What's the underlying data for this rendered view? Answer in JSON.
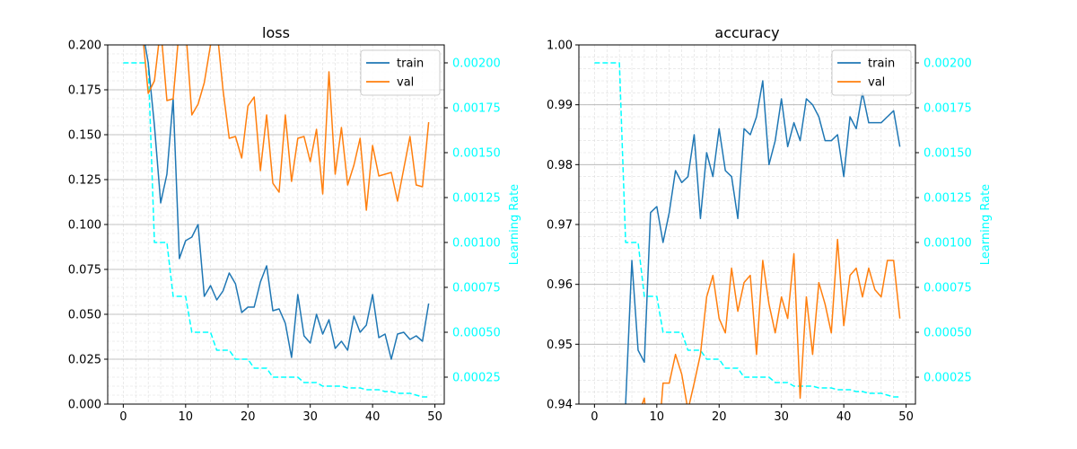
{
  "colors": {
    "train": "#1f77b4",
    "val": "#ff7f0e",
    "learning_rate": "#00ffff",
    "major_grid": "#b0b0b0",
    "minor_grid": "#dddddd"
  },
  "chart_data": [
    {
      "type": "line",
      "title": "loss",
      "xlabel": "",
      "ylabel": "",
      "y2label": "Learning Rate",
      "xlim": [
        -2.5,
        51.5
      ],
      "ylim": [
        0,
        0.2
      ],
      "y2lim": [
        0.0001,
        0.0021
      ],
      "grid": true,
      "legend_position": "top-right",
      "x_ticks": [
        0,
        10,
        20,
        30,
        40,
        50
      ],
      "x_tick_labels": [
        "0",
        "10",
        "20",
        "30",
        "40",
        "50"
      ],
      "y_ticks": [
        0,
        0.025,
        0.05,
        0.075,
        0.1,
        0.125,
        0.15,
        0.175,
        0.2
      ],
      "y_tick_labels": [
        "0.000",
        "0.025",
        "0.050",
        "0.075",
        "0.100",
        "0.125",
        "0.150",
        "0.175",
        "0.200"
      ],
      "y2_ticks": [
        0.00025,
        0.0005,
        0.00075,
        0.001,
        0.00125,
        0.0015,
        0.00175,
        0.002
      ],
      "y2_tick_labels": [
        "0.00025",
        "0.00050",
        "0.00075",
        "0.00100",
        "0.00125",
        "0.00150",
        "0.00175",
        "0.00200"
      ],
      "series": [
        {
          "name": "train",
          "x": [
            3,
            4,
            5,
            6,
            7,
            8,
            9,
            10,
            11,
            12,
            13,
            14,
            15,
            16,
            17,
            18,
            19,
            20,
            21,
            22,
            23,
            24,
            25,
            26,
            27,
            28,
            29,
            30,
            31,
            32,
            33,
            34,
            35,
            36,
            37,
            38,
            39,
            40,
            41,
            42,
            43,
            44,
            45,
            46,
            47,
            48,
            49
          ],
          "y": [
            0.21,
            0.19,
            0.155,
            0.112,
            0.128,
            0.17,
            0.081,
            0.091,
            0.093,
            0.1,
            0.06,
            0.066,
            0.058,
            0.063,
            0.073,
            0.067,
            0.051,
            0.054,
            0.054,
            0.068,
            0.077,
            0.052,
            0.053,
            0.045,
            0.026,
            0.061,
            0.038,
            0.034,
            0.05,
            0.039,
            0.047,
            0.031,
            0.035,
            0.03,
            0.049,
            0.04,
            0.044,
            0.061,
            0.037,
            0.039,
            0.025,
            0.039,
            0.04,
            0.036,
            0.038,
            0.035,
            0.056
          ]
        },
        {
          "name": "val",
          "x": [
            3,
            4,
            5,
            6,
            7,
            8,
            9,
            10,
            11,
            12,
            13,
            14,
            15,
            16,
            17,
            18,
            19,
            20,
            21,
            22,
            23,
            24,
            25,
            26,
            27,
            28,
            29,
            30,
            31,
            32,
            33,
            34,
            35,
            36,
            37,
            38,
            39,
            40,
            41,
            42,
            43,
            44,
            45,
            46,
            47,
            48,
            49
          ],
          "y": [
            0.21,
            0.173,
            0.18,
            0.21,
            0.169,
            0.17,
            0.21,
            0.21,
            0.161,
            0.167,
            0.179,
            0.2,
            0.21,
            0.175,
            0.148,
            0.149,
            0.137,
            0.166,
            0.171,
            0.13,
            0.161,
            0.123,
            0.118,
            0.161,
            0.124,
            0.148,
            0.149,
            0.135,
            0.153,
            0.117,
            0.185,
            0.128,
            0.154,
            0.122,
            0.133,
            0.148,
            0.108,
            0.144,
            0.127,
            0.128,
            0.129,
            0.113,
            0.131,
            0.149,
            0.122,
            0.121,
            0.157
          ]
        }
      ],
      "learning_rate": {
        "name": "learning_rate",
        "style": "dashed",
        "x": [
          0,
          1,
          2,
          3,
          4,
          5,
          6,
          7,
          8,
          9,
          10,
          11,
          12,
          13,
          14,
          15,
          16,
          17,
          18,
          19,
          20,
          21,
          22,
          23,
          24,
          25,
          26,
          27,
          28,
          29,
          30,
          31,
          32,
          33,
          34,
          35,
          36,
          37,
          38,
          39,
          40,
          41,
          42,
          43,
          44,
          45,
          46,
          47,
          48,
          49
        ],
        "y": [
          0.002,
          0.002,
          0.002,
          0.002,
          0.002,
          0.001,
          0.001,
          0.001,
          0.0007,
          0.0007,
          0.0007,
          0.0005,
          0.0005,
          0.0005,
          0.0005,
          0.0004,
          0.0004,
          0.0004,
          0.00035,
          0.00035,
          0.00035,
          0.0003,
          0.0003,
          0.0003,
          0.00025,
          0.00025,
          0.00025,
          0.00025,
          0.00025,
          0.00022,
          0.00022,
          0.00022,
          0.0002,
          0.0002,
          0.0002,
          0.0002,
          0.00019,
          0.00019,
          0.00019,
          0.00018,
          0.00018,
          0.00018,
          0.00017,
          0.00017,
          0.00016,
          0.00016,
          0.00016,
          0.00015,
          0.00014,
          0.00014
        ]
      }
    },
    {
      "type": "line",
      "title": "accuracy",
      "xlabel": "",
      "ylabel": "",
      "y2label": "Learning Rate",
      "xlim": [
        -2.5,
        51.5
      ],
      "ylim": [
        0.94,
        1.0
      ],
      "y2lim": [
        0.0001,
        0.0021
      ],
      "grid": true,
      "legend_position": "top-right",
      "x_ticks": [
        0,
        10,
        20,
        30,
        40,
        50
      ],
      "x_tick_labels": [
        "0",
        "10",
        "20",
        "30",
        "40",
        "50"
      ],
      "y_ticks": [
        0.94,
        0.95,
        0.96,
        0.97,
        0.98,
        0.99,
        1.0
      ],
      "y_tick_labels": [
        "0.94",
        "0.95",
        "0.96",
        "0.97",
        "0.98",
        "0.99",
        "1.00"
      ],
      "y2_ticks": [
        0.00025,
        0.0005,
        0.00075,
        0.001,
        0.00125,
        0.0015,
        0.00175,
        0.002
      ],
      "y2_tick_labels": [
        "0.00025",
        "0.00050",
        "0.00075",
        "0.00100",
        "0.00125",
        "0.00150",
        "0.00175",
        "0.00200"
      ],
      "series": [
        {
          "name": "train",
          "x": [
            5,
            6,
            7,
            8,
            9,
            10,
            11,
            12,
            13,
            14,
            15,
            16,
            17,
            18,
            19,
            20,
            21,
            22,
            23,
            24,
            25,
            26,
            27,
            28,
            29,
            30,
            31,
            32,
            33,
            34,
            35,
            36,
            37,
            38,
            39,
            40,
            41,
            42,
            43,
            44,
            45,
            46,
            47,
            48,
            49
          ],
          "y": [
            0.94,
            0.964,
            0.949,
            0.947,
            0.972,
            0.973,
            0.967,
            0.972,
            0.979,
            0.977,
            0.978,
            0.985,
            0.971,
            0.982,
            0.978,
            0.986,
            0.979,
            0.978,
            0.971,
            0.986,
            0.985,
            0.988,
            0.994,
            0.98,
            0.984,
            0.991,
            0.983,
            0.987,
            0.984,
            0.991,
            0.99,
            0.988,
            0.984,
            0.984,
            0.985,
            0.978,
            0.988,
            0.986,
            0.992,
            0.987,
            0.987,
            0.987,
            0.988,
            0.989,
            0.983
          ]
        },
        {
          "name": "val",
          "x": [
            7,
            8,
            9,
            10,
            11,
            12,
            13,
            14,
            15,
            16,
            17,
            18,
            19,
            20,
            21,
            22,
            23,
            24,
            25,
            26,
            27,
            28,
            29,
            30,
            31,
            32,
            33,
            34,
            35,
            36,
            37,
            38,
            39,
            40,
            41,
            42,
            43,
            44,
            45,
            46,
            47,
            48,
            49
          ],
          "y": [
            0.938,
            0.941,
            0.93,
            0.93,
            0.9435,
            0.9435,
            0.9483,
            0.945,
            0.939,
            0.9435,
            0.9483,
            0.9579,
            0.9615,
            0.9543,
            0.9519,
            0.9627,
            0.9555,
            0.9603,
            0.9615,
            0.9483,
            0.964,
            0.9567,
            0.9519,
            0.9579,
            0.9543,
            0.9651,
            0.941,
            0.9579,
            0.9483,
            0.9603,
            0.9567,
            0.9519,
            0.9675,
            0.9531,
            0.9615,
            0.9627,
            0.9579,
            0.9627,
            0.9591,
            0.9579,
            0.964,
            0.964,
            0.9543
          ]
        }
      ],
      "learning_rate": {
        "name": "learning_rate",
        "style": "dashed",
        "x": [
          0,
          1,
          2,
          3,
          4,
          5,
          6,
          7,
          8,
          9,
          10,
          11,
          12,
          13,
          14,
          15,
          16,
          17,
          18,
          19,
          20,
          21,
          22,
          23,
          24,
          25,
          26,
          27,
          28,
          29,
          30,
          31,
          32,
          33,
          34,
          35,
          36,
          37,
          38,
          39,
          40,
          41,
          42,
          43,
          44,
          45,
          46,
          47,
          48,
          49
        ],
        "y": [
          0.002,
          0.002,
          0.002,
          0.002,
          0.002,
          0.001,
          0.001,
          0.001,
          0.0007,
          0.0007,
          0.0007,
          0.0005,
          0.0005,
          0.0005,
          0.0005,
          0.0004,
          0.0004,
          0.0004,
          0.00035,
          0.00035,
          0.00035,
          0.0003,
          0.0003,
          0.0003,
          0.00025,
          0.00025,
          0.00025,
          0.00025,
          0.00025,
          0.00022,
          0.00022,
          0.00022,
          0.0002,
          0.0002,
          0.0002,
          0.0002,
          0.00019,
          0.00019,
          0.00019,
          0.00018,
          0.00018,
          0.00018,
          0.00017,
          0.00017,
          0.00016,
          0.00016,
          0.00016,
          0.00015,
          0.00014,
          0.00014
        ]
      }
    }
  ]
}
